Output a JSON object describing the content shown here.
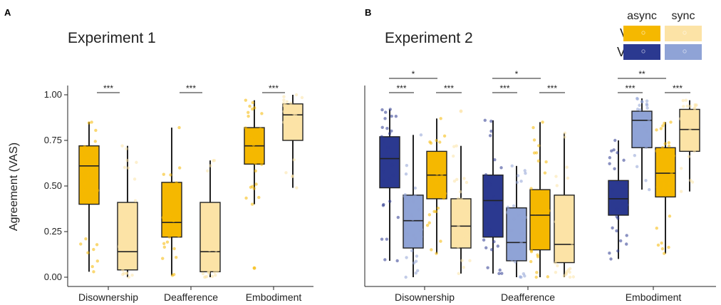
{
  "chart_data": [
    {
      "panel": "A",
      "type": "box",
      "title": "Experiment 1",
      "ylabel": "Agreement (VAS)",
      "xlabel": "",
      "ylim": [
        0,
        1
      ],
      "yticks": [
        "0.00",
        "0.25",
        "0.50",
        "0.75",
        "1.00"
      ],
      "categories": [
        "Disownership",
        "Deafference",
        "Embodiment"
      ],
      "series": [
        {
          "name": "VT async",
          "color": "#F5B800",
          "boxes": [
            {
              "min": 0.03,
              "q1": 0.4,
              "median": 0.61,
              "q3": 0.72,
              "max": 0.85
            },
            {
              "min": 0.01,
              "q1": 0.22,
              "median": 0.3,
              "q3": 0.52,
              "max": 0.82
            },
            {
              "min": 0.4,
              "q1": 0.62,
              "median": 0.72,
              "q3": 0.82,
              "max": 0.97,
              "outliers": [
                0.05
              ]
            }
          ]
        },
        {
          "name": "VT sync",
          "color": "#FCE3A6",
          "boxes": [
            {
              "min": 0.0,
              "q1": 0.04,
              "median": 0.14,
              "q3": 0.41,
              "max": 0.72
            },
            {
              "min": 0.0,
              "q1": 0.03,
              "median": 0.14,
              "q3": 0.41,
              "max": 0.64
            },
            {
              "min": 0.49,
              "q1": 0.75,
              "median": 0.89,
              "q3": 0.95,
              "max": 1.0
            }
          ]
        }
      ],
      "significance": [
        {
          "category": 0,
          "label": "***"
        },
        {
          "category": 1,
          "label": "***"
        },
        {
          "category": 2,
          "label": "***"
        }
      ]
    },
    {
      "panel": "B",
      "type": "box",
      "title": "Experiment 2",
      "xlabel": "",
      "ylim": [
        0,
        1
      ],
      "categories": [
        "Disownership",
        "Deafference",
        "Embodiment"
      ],
      "series": [
        {
          "name": "VM async",
          "color": "#2B3990",
          "boxes": [
            {
              "min": 0.09,
              "q1": 0.49,
              "median": 0.65,
              "q3": 0.77,
              "max": 0.92
            },
            {
              "min": 0.02,
              "q1": 0.22,
              "median": 0.42,
              "q3": 0.56,
              "max": 0.86
            },
            {
              "min": 0.1,
              "q1": 0.34,
              "median": 0.43,
              "q3": 0.53,
              "max": 0.75
            }
          ]
        },
        {
          "name": "VM sync",
          "color": "#8FA3D6",
          "boxes": [
            {
              "min": 0.0,
              "q1": 0.16,
              "median": 0.31,
              "q3": 0.45,
              "max": 0.78
            },
            {
              "min": 0.0,
              "q1": 0.09,
              "median": 0.19,
              "q3": 0.38,
              "max": 0.61
            },
            {
              "min": 0.48,
              "q1": 0.71,
              "median": 0.86,
              "q3": 0.91,
              "max": 0.98
            }
          ]
        },
        {
          "name": "VT async",
          "color": "#F5B800",
          "boxes": [
            {
              "min": 0.13,
              "q1": 0.43,
              "median": 0.56,
              "q3": 0.69,
              "max": 0.87
            },
            {
              "min": 0.0,
              "q1": 0.15,
              "median": 0.34,
              "q3": 0.48,
              "max": 0.85
            },
            {
              "min": 0.13,
              "q1": 0.44,
              "median": 0.57,
              "q3": 0.71,
              "max": 0.85
            }
          ]
        },
        {
          "name": "VT sync",
          "color": "#FCE3A6",
          "boxes": [
            {
              "min": 0.02,
              "q1": 0.16,
              "median": 0.28,
              "q3": 0.43,
              "max": 0.72,
              "outliers": [
                0.91
              ]
            },
            {
              "min": 0.0,
              "q1": 0.08,
              "median": 0.18,
              "q3": 0.45,
              "max": 0.79
            },
            {
              "min": 0.47,
              "q1": 0.69,
              "median": 0.81,
              "q3": 0.92,
              "max": 0.97
            }
          ]
        }
      ],
      "significance": [
        {
          "category": 0,
          "from": 0,
          "to": 2,
          "label": "*"
        },
        {
          "category": 0,
          "from": 0,
          "to": 1,
          "label": "***"
        },
        {
          "category": 0,
          "from": 2,
          "to": 3,
          "label": "***"
        },
        {
          "category": 1,
          "from": 0,
          "to": 2,
          "label": "*"
        },
        {
          "category": 1,
          "from": 0,
          "to": 1,
          "label": "***"
        },
        {
          "category": 1,
          "from": 2,
          "to": 3,
          "label": "***"
        },
        {
          "category": 2,
          "from": 0,
          "to": 2,
          "label": "**"
        },
        {
          "category": 2,
          "from": 0,
          "to": 1,
          "label": "***"
        },
        {
          "category": 2,
          "from": 2,
          "to": 3,
          "label": "***"
        }
      ],
      "legend": {
        "placement": "top-right",
        "columns": [
          "async",
          "sync"
        ],
        "rows": [
          {
            "label": "VT",
            "colors": [
              "#F5B800",
              "#FCE3A6"
            ]
          },
          {
            "label": "VM",
            "colors": [
              "#2B3990",
              "#8FA3D6"
            ]
          }
        ]
      }
    }
  ]
}
